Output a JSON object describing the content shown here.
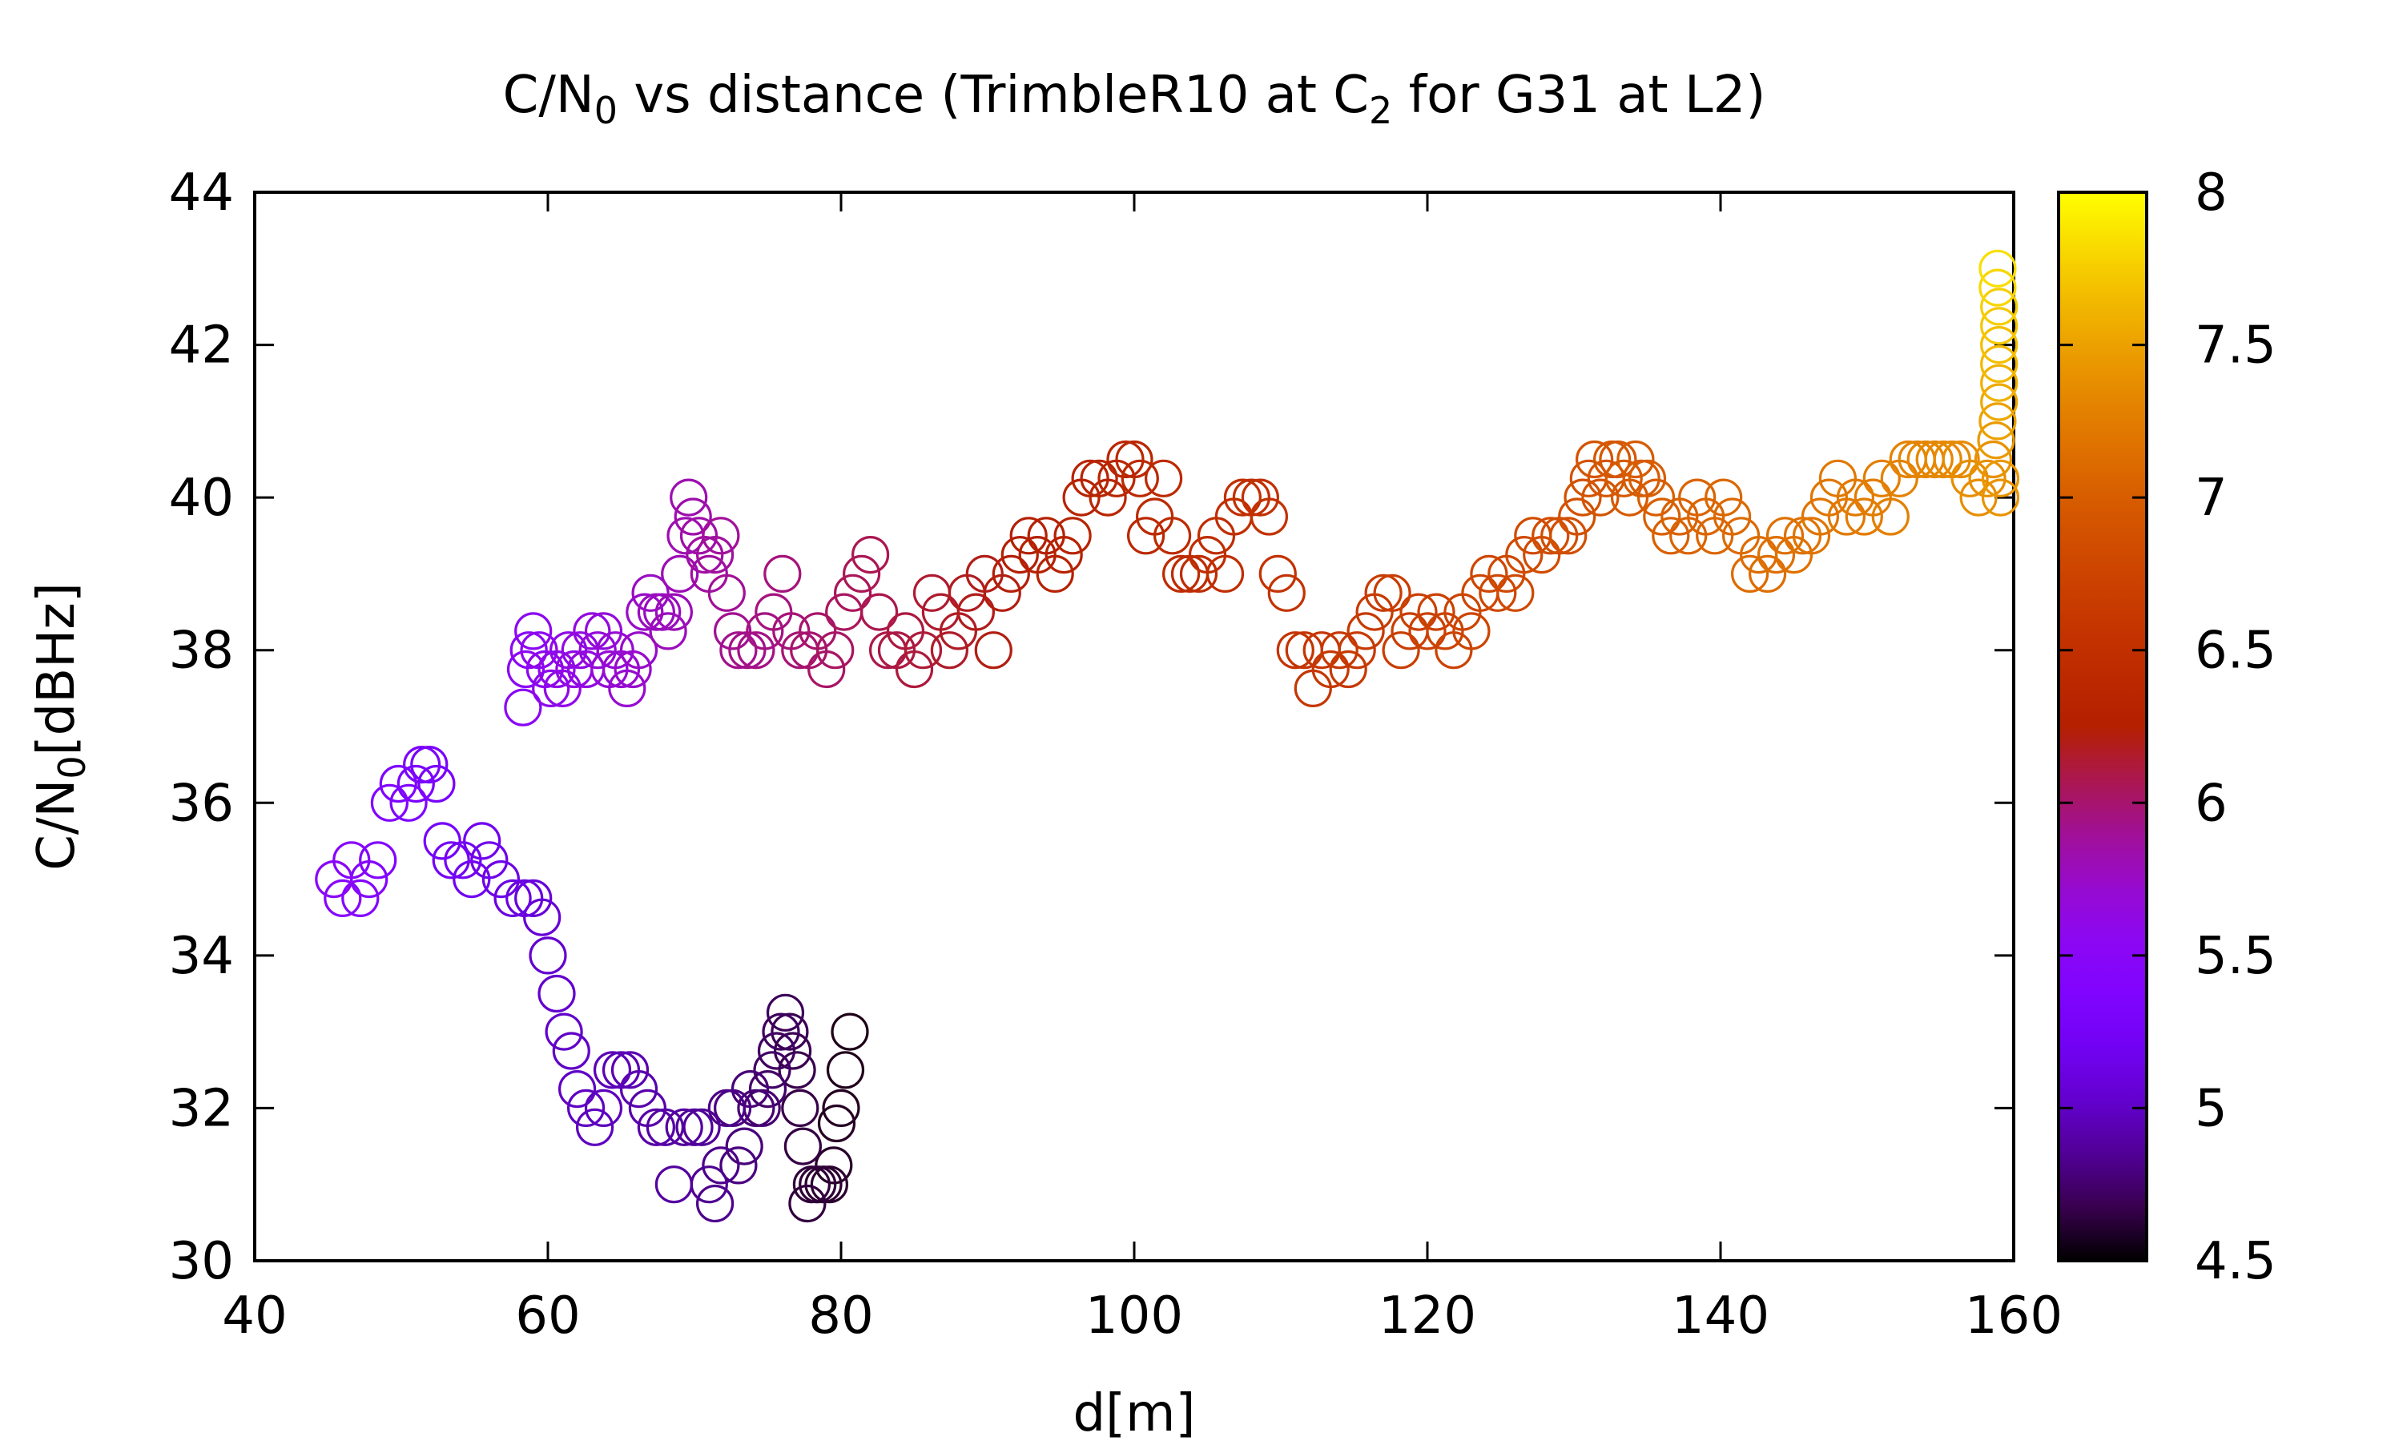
{
  "chart_data": {
    "type": "scatter",
    "title": {
      "pre": "C/N",
      "sub": "0",
      "mid": " vs distance (TrimbleR10 at C",
      "sub2": "2",
      "post": " for G31 at L2)"
    },
    "xlabel": "d[m]",
    "ylabel": {
      "pre": "C/N",
      "sub": "0",
      "post": "[dBHz]"
    },
    "xlim": [
      40,
      160
    ],
    "ylim": [
      30,
      44
    ],
    "xticks": [
      "40",
      "60",
      "80",
      "100",
      "120",
      "140",
      "160"
    ],
    "yticks": [
      "30",
      "32",
      "34",
      "36",
      "38",
      "40",
      "42",
      "44"
    ],
    "colorbar": {
      "range": [
        4.5,
        8
      ],
      "ticks": [
        "4.5",
        "5",
        "5.5",
        "6",
        "6.5",
        "7",
        "7.5",
        "8"
      ],
      "palette": "gnuplot (black - purple - red - orange - yellow)"
    },
    "marker": "open-circle",
    "points": [
      [
        80.6,
        33.0,
        4.55
      ],
      [
        80.3,
        32.5,
        4.56
      ],
      [
        80.0,
        32.0,
        4.57
      ],
      [
        79.7,
        31.8,
        4.58
      ],
      [
        79.5,
        31.25,
        4.59
      ],
      [
        79.2,
        31.0,
        4.6
      ],
      [
        78.8,
        31.0,
        4.61
      ],
      [
        78.4,
        31.0,
        4.62
      ],
      [
        78.0,
        31.0,
        4.63
      ],
      [
        77.7,
        30.75,
        4.64
      ],
      [
        77.4,
        31.5,
        4.65
      ],
      [
        77.2,
        32.0,
        4.66
      ],
      [
        77.0,
        32.5,
        4.67
      ],
      [
        76.7,
        32.75,
        4.68
      ],
      [
        76.5,
        33.0,
        4.69
      ],
      [
        76.2,
        33.25,
        4.7
      ],
      [
        75.9,
        33.0,
        4.71
      ],
      [
        75.6,
        32.75,
        4.72
      ],
      [
        75.3,
        32.5,
        4.73
      ],
      [
        75.0,
        32.25,
        4.74
      ],
      [
        74.6,
        32.0,
        4.75
      ],
      [
        74.2,
        32.0,
        4.76
      ],
      [
        73.8,
        32.25,
        4.77
      ],
      [
        73.4,
        31.5,
        4.78
      ],
      [
        73.0,
        31.25,
        4.79
      ],
      [
        72.6,
        32.0,
        4.8
      ],
      [
        72.2,
        32.0,
        4.81
      ],
      [
        71.8,
        31.25,
        4.82
      ],
      [
        71.4,
        30.75,
        4.83
      ],
      [
        71.0,
        31.0,
        4.84
      ],
      [
        70.5,
        31.75,
        4.85
      ],
      [
        70.0,
        31.75,
        4.86
      ],
      [
        69.3,
        31.75,
        4.87
      ],
      [
        68.6,
        31.0,
        4.88
      ],
      [
        68.0,
        31.75,
        4.89
      ],
      [
        67.4,
        31.75,
        4.9
      ],
      [
        66.8,
        32.0,
        4.91
      ],
      [
        66.2,
        32.25,
        4.92
      ],
      [
        65.6,
        32.5,
        4.93
      ],
      [
        65.0,
        32.5,
        4.94
      ],
      [
        64.4,
        32.5,
        4.95
      ],
      [
        63.8,
        32.0,
        4.96
      ],
      [
        63.2,
        31.75,
        4.97
      ],
      [
        62.6,
        32.0,
        4.98
      ],
      [
        62.0,
        32.25,
        4.99
      ],
      [
        61.6,
        32.75,
        5.0
      ],
      [
        61.1,
        33.0,
        5.01
      ],
      [
        60.6,
        33.5,
        5.02
      ],
      [
        60.0,
        34.0,
        5.03
      ],
      [
        59.6,
        34.5,
        5.05
      ],
      [
        59.0,
        34.75,
        5.07
      ],
      [
        58.4,
        34.75,
        5.09
      ],
      [
        57.6,
        34.75,
        5.11
      ],
      [
        56.8,
        35.0,
        5.13
      ],
      [
        56.0,
        35.25,
        5.15
      ],
      [
        55.5,
        35.5,
        5.17
      ],
      [
        54.8,
        35.0,
        5.19
      ],
      [
        54.2,
        35.25,
        5.21
      ],
      [
        53.4,
        35.25,
        5.23
      ],
      [
        52.8,
        35.5,
        5.25
      ],
      [
        52.4,
        36.25,
        5.27
      ],
      [
        51.9,
        36.5,
        5.29
      ],
      [
        51.4,
        36.5,
        5.31
      ],
      [
        51.0,
        36.25,
        5.33
      ],
      [
        50.5,
        36.0,
        5.35
      ],
      [
        49.8,
        36.25,
        5.37
      ],
      [
        49.2,
        36.0,
        5.39
      ],
      [
        48.4,
        35.25,
        5.41
      ],
      [
        47.8,
        35.0,
        5.43
      ],
      [
        47.2,
        34.75,
        5.45
      ],
      [
        46.6,
        35.25,
        5.47
      ],
      [
        46.0,
        34.75,
        5.49
      ],
      [
        45.4,
        35.0,
        5.51
      ],
      [
        58.3,
        37.25,
        5.53
      ],
      [
        58.5,
        37.75,
        5.54
      ],
      [
        58.7,
        38.0,
        5.55
      ],
      [
        59.0,
        38.25,
        5.56
      ],
      [
        59.4,
        38.0,
        5.57
      ],
      [
        59.8,
        37.75,
        5.58
      ],
      [
        60.2,
        37.5,
        5.59
      ],
      [
        60.6,
        37.75,
        5.6
      ],
      [
        61.0,
        37.5,
        5.61
      ],
      [
        61.4,
        38.0,
        5.62
      ],
      [
        61.8,
        37.75,
        5.63
      ],
      [
        62.2,
        38.0,
        5.64
      ],
      [
        62.6,
        37.75,
        5.65
      ],
      [
        63.0,
        38.25,
        5.66
      ],
      [
        63.4,
        38.0,
        5.67
      ],
      [
        63.8,
        38.25,
        5.68
      ],
      [
        64.2,
        37.75,
        5.69
      ],
      [
        64.6,
        38.0,
        5.7
      ],
      [
        65.0,
        37.75,
        5.71
      ],
      [
        65.4,
        37.5,
        5.72
      ],
      [
        65.8,
        37.75,
        5.73
      ],
      [
        66.2,
        38.0,
        5.74
      ],
      [
        66.6,
        38.5,
        5.75
      ],
      [
        67.0,
        38.75,
        5.76
      ],
      [
        67.4,
        38.5,
        5.77
      ],
      [
        67.8,
        38.5,
        5.78
      ],
      [
        68.2,
        38.25,
        5.79
      ],
      [
        68.6,
        38.5,
        5.8
      ],
      [
        69.0,
        39.0,
        5.81
      ],
      [
        69.4,
        39.5,
        5.82
      ],
      [
        69.6,
        40.0,
        5.83
      ],
      [
        69.9,
        39.75,
        5.84
      ],
      [
        70.3,
        39.5,
        5.85
      ],
      [
        70.7,
        39.25,
        5.86
      ],
      [
        71.0,
        39.0,
        5.87
      ],
      [
        71.4,
        39.25,
        5.88
      ],
      [
        71.8,
        39.5,
        5.89
      ],
      [
        72.2,
        38.75,
        5.9
      ],
      [
        72.6,
        38.25,
        5.91
      ],
      [
        73.0,
        38.0,
        5.92
      ],
      [
        73.6,
        38.0,
        5.93
      ],
      [
        74.2,
        38.0,
        5.94
      ],
      [
        74.8,
        38.25,
        5.95
      ],
      [
        75.4,
        38.5,
        5.96
      ],
      [
        76.0,
        39.0,
        5.97
      ],
      [
        76.6,
        38.25,
        5.98
      ],
      [
        77.2,
        38.0,
        5.99
      ],
      [
        77.8,
        38.0,
        6.0
      ],
      [
        78.4,
        38.25,
        6.01
      ],
      [
        79.0,
        37.75,
        6.02
      ],
      [
        79.6,
        38.0,
        6.03
      ],
      [
        80.2,
        38.5,
        6.04
      ],
      [
        80.8,
        38.75,
        6.05
      ],
      [
        81.4,
        39.0,
        6.06
      ],
      [
        82.0,
        39.25,
        6.07
      ],
      [
        82.6,
        38.5,
        6.08
      ],
      [
        83.2,
        38.0,
        6.09
      ],
      [
        83.8,
        38.0,
        6.1
      ],
      [
        84.4,
        38.25,
        6.11
      ],
      [
        85.0,
        37.75,
        6.12
      ],
      [
        85.6,
        38.0,
        6.13
      ],
      [
        86.2,
        38.75,
        6.14
      ],
      [
        86.8,
        38.5,
        6.15
      ],
      [
        87.4,
        38.0,
        6.16
      ],
      [
        88.0,
        38.25,
        6.17
      ],
      [
        88.6,
        38.75,
        6.18
      ],
      [
        89.2,
        38.5,
        6.19
      ],
      [
        89.8,
        39.0,
        6.2
      ],
      [
        90.4,
        38.0,
        6.21
      ],
      [
        91.0,
        38.75,
        6.22
      ],
      [
        91.6,
        39.0,
        6.23
      ],
      [
        92.2,
        39.25,
        6.24
      ],
      [
        92.8,
        39.5,
        6.25
      ],
      [
        93.4,
        39.25,
        6.26
      ],
      [
        94.0,
        39.5,
        6.27
      ],
      [
        94.6,
        39.0,
        6.28
      ],
      [
        95.2,
        39.25,
        6.29
      ],
      [
        95.8,
        39.5,
        6.3
      ],
      [
        96.4,
        40.0,
        6.31
      ],
      [
        97.0,
        40.25,
        6.32
      ],
      [
        97.6,
        40.25,
        6.33
      ],
      [
        98.2,
        40.0,
        6.34
      ],
      [
        98.8,
        40.25,
        6.35
      ],
      [
        99.4,
        40.5,
        6.36
      ],
      [
        100.0,
        40.5,
        6.37
      ],
      [
        100.4,
        40.25,
        6.38
      ],
      [
        100.8,
        39.5,
        6.39
      ],
      [
        101.4,
        39.75,
        6.4
      ],
      [
        102.0,
        40.25,
        6.41
      ],
      [
        102.6,
        39.5,
        6.42
      ],
      [
        103.2,
        39.0,
        6.43
      ],
      [
        103.8,
        39.0,
        6.44
      ],
      [
        104.4,
        39.0,
        6.45
      ],
      [
        105.0,
        39.25,
        6.46
      ],
      [
        105.6,
        39.5,
        6.47
      ],
      [
        106.2,
        39.0,
        6.48
      ],
      [
        106.8,
        39.75,
        6.49
      ],
      [
        107.4,
        40.0,
        6.5
      ],
      [
        108.0,
        40.0,
        6.51
      ],
      [
        108.6,
        40.0,
        6.52
      ],
      [
        109.2,
        39.75,
        6.53
      ],
      [
        109.8,
        39.0,
        6.54
      ],
      [
        110.4,
        38.75,
        6.55
      ],
      [
        111.0,
        38.0,
        6.56
      ],
      [
        111.6,
        38.0,
        6.57
      ],
      [
        112.2,
        37.5,
        6.58
      ],
      [
        112.8,
        38.0,
        6.59
      ],
      [
        113.4,
        37.75,
        6.6
      ],
      [
        114.0,
        38.0,
        6.61
      ],
      [
        114.6,
        37.75,
        6.62
      ],
      [
        115.2,
        38.0,
        6.63
      ],
      [
        115.8,
        38.25,
        6.64
      ],
      [
        116.4,
        38.5,
        6.65
      ],
      [
        117.0,
        38.75,
        6.66
      ],
      [
        117.6,
        38.75,
        6.67
      ],
      [
        118.2,
        38.0,
        6.68
      ],
      [
        118.8,
        38.25,
        6.69
      ],
      [
        119.4,
        38.5,
        6.7
      ],
      [
        120.0,
        38.25,
        6.71
      ],
      [
        120.6,
        38.5,
        6.72
      ],
      [
        121.2,
        38.25,
        6.73
      ],
      [
        121.8,
        38.0,
        6.74
      ],
      [
        122.4,
        38.5,
        6.75
      ],
      [
        123.0,
        38.25,
        6.76
      ],
      [
        123.6,
        38.75,
        6.77
      ],
      [
        124.2,
        39.0,
        6.78
      ],
      [
        124.8,
        38.75,
        6.79
      ],
      [
        125.4,
        39.0,
        6.8
      ],
      [
        126.0,
        38.75,
        6.81
      ],
      [
        126.6,
        39.25,
        6.82
      ],
      [
        127.2,
        39.5,
        6.83
      ],
      [
        127.8,
        39.25,
        6.84
      ],
      [
        128.4,
        39.5,
        6.85
      ],
      [
        129.0,
        39.5,
        6.86
      ],
      [
        129.6,
        39.5,
        6.87
      ],
      [
        130.2,
        39.75,
        6.88
      ],
      [
        130.6,
        40.0,
        6.89
      ],
      [
        131.0,
        40.25,
        6.9
      ],
      [
        131.4,
        40.5,
        6.91
      ],
      [
        131.8,
        40.0,
        6.92
      ],
      [
        132.2,
        40.25,
        6.93
      ],
      [
        132.6,
        40.5,
        6.94
      ],
      [
        133.0,
        40.5,
        6.95
      ],
      [
        133.4,
        40.25,
        6.96
      ],
      [
        133.8,
        40.0,
        6.97
      ],
      [
        134.2,
        40.5,
        6.98
      ],
      [
        134.6,
        40.25,
        6.99
      ],
      [
        135.0,
        40.25,
        7.0
      ],
      [
        135.6,
        40.0,
        7.01
      ],
      [
        136.0,
        39.75,
        7.02
      ],
      [
        136.6,
        39.5,
        7.03
      ],
      [
        137.2,
        39.75,
        7.04
      ],
      [
        137.8,
        39.5,
        7.05
      ],
      [
        138.4,
        40.0,
        7.06
      ],
      [
        139.0,
        39.75,
        7.07
      ],
      [
        139.6,
        39.5,
        7.08
      ],
      [
        140.2,
        40.0,
        7.09
      ],
      [
        140.8,
        39.75,
        7.1
      ],
      [
        141.4,
        39.5,
        7.11
      ],
      [
        142.0,
        39.0,
        7.12
      ],
      [
        142.6,
        39.25,
        7.13
      ],
      [
        143.2,
        39.0,
        7.14
      ],
      [
        143.8,
        39.25,
        7.15
      ],
      [
        144.4,
        39.5,
        7.16
      ],
      [
        145.0,
        39.25,
        7.17
      ],
      [
        145.6,
        39.5,
        7.18
      ],
      [
        146.2,
        39.5,
        7.19
      ],
      [
        146.8,
        39.75,
        7.2
      ],
      [
        147.4,
        40.0,
        7.21
      ],
      [
        148.0,
        40.25,
        7.22
      ],
      [
        148.6,
        39.75,
        7.23
      ],
      [
        149.2,
        40.0,
        7.24
      ],
      [
        149.8,
        39.75,
        7.25
      ],
      [
        150.4,
        40.0,
        7.26
      ],
      [
        151.0,
        40.25,
        7.27
      ],
      [
        151.6,
        39.75,
        7.28
      ],
      [
        152.2,
        40.25,
        7.29
      ],
      [
        152.8,
        40.5,
        7.3
      ],
      [
        153.4,
        40.5,
        7.31
      ],
      [
        154.0,
        40.5,
        7.32
      ],
      [
        154.6,
        40.5,
        7.33
      ],
      [
        155.2,
        40.5,
        7.34
      ],
      [
        155.8,
        40.5,
        7.35
      ],
      [
        156.4,
        40.5,
        7.36
      ],
      [
        157.0,
        40.25,
        7.37
      ],
      [
        157.6,
        40.0,
        7.38
      ],
      [
        158.2,
        40.25,
        7.39
      ],
      [
        158.6,
        40.5,
        7.4
      ],
      [
        158.8,
        40.75,
        7.45
      ],
      [
        158.9,
        41.0,
        7.5
      ],
      [
        159.0,
        41.25,
        7.55
      ],
      [
        159.0,
        41.5,
        7.6
      ],
      [
        159.0,
        41.75,
        7.64
      ],
      [
        159.0,
        42.0,
        7.68
      ],
      [
        159.0,
        42.25,
        7.72
      ],
      [
        159.0,
        42.5,
        7.76
      ],
      [
        158.9,
        42.75,
        7.8
      ],
      [
        158.9,
        43.0,
        7.84
      ],
      [
        159.1,
        40.0,
        7.42
      ],
      [
        159.1,
        40.25,
        7.44
      ]
    ]
  }
}
